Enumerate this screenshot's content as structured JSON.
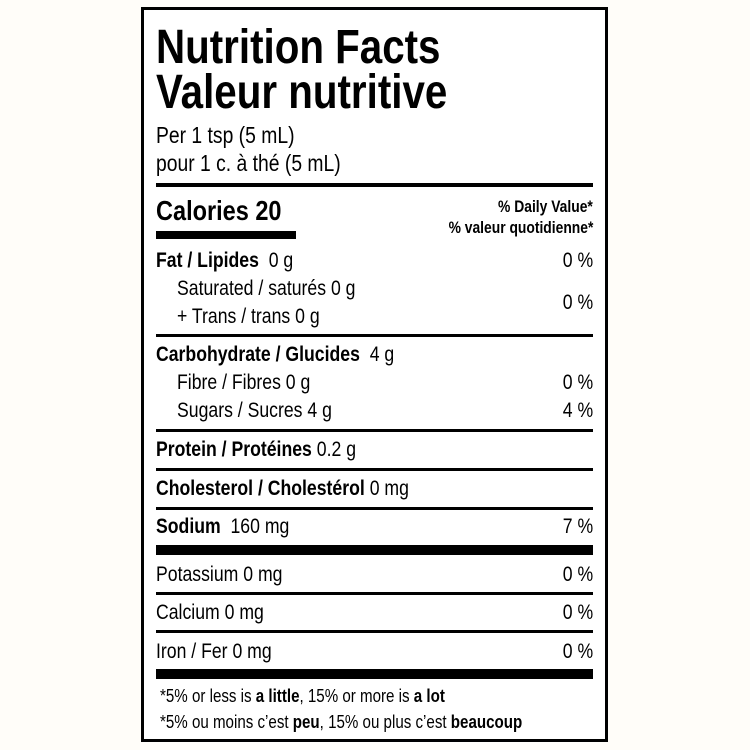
{
  "header": {
    "title_en": "Nutrition Facts",
    "title_fr": "Valeur nutritive",
    "serving_en": "Per 1 tsp (5 mL)",
    "serving_fr": "pour 1 c. à thé (5 mL)"
  },
  "calories": {
    "label": "Calories",
    "value": "20"
  },
  "daily_value_header": {
    "en": "% Daily Value*",
    "fr": "% valeur quotidienne*"
  },
  "nutrients": {
    "fat": {
      "label": "Fat / Lipides",
      "amount": "0 g",
      "dv": "0 %"
    },
    "saturated": {
      "label": "Saturated / saturés 0 g"
    },
    "trans": {
      "label": "+ Trans / trans 0 g",
      "dv": "0 %"
    },
    "carbohydrate": {
      "label": "Carbohydrate / Glucides",
      "amount": "4 g"
    },
    "fibre": {
      "label": "Fibre / Fibres 0 g",
      "dv": "0 %"
    },
    "sugars": {
      "label": "Sugars / Sucres 4 g",
      "dv": "4 %"
    },
    "protein": {
      "label": "Protein / Protéines",
      "amount": "0.2 g"
    },
    "cholesterol": {
      "label": "Cholesterol / Cholestérol",
      "amount": "0 mg"
    },
    "sodium": {
      "label": "Sodium",
      "amount": "160 mg",
      "dv": "7 %"
    },
    "potassium": {
      "label": "Potassium 0 mg",
      "dv": "0 %"
    },
    "calcium": {
      "label": "Calcium 0 mg",
      "dv": "0 %"
    },
    "iron": {
      "label": "Iron / Fer 0 mg",
      "dv": "0 %"
    }
  },
  "footnote": {
    "en": {
      "a": "*5% or less is ",
      "b": "a little",
      "c": ", 15% or more is ",
      "d": "a lot"
    },
    "fr": {
      "a": "*5% ou moins c’est ",
      "b": "peu",
      "c": ", 15% ou plus c’est ",
      "d": "beaucoup"
    }
  }
}
